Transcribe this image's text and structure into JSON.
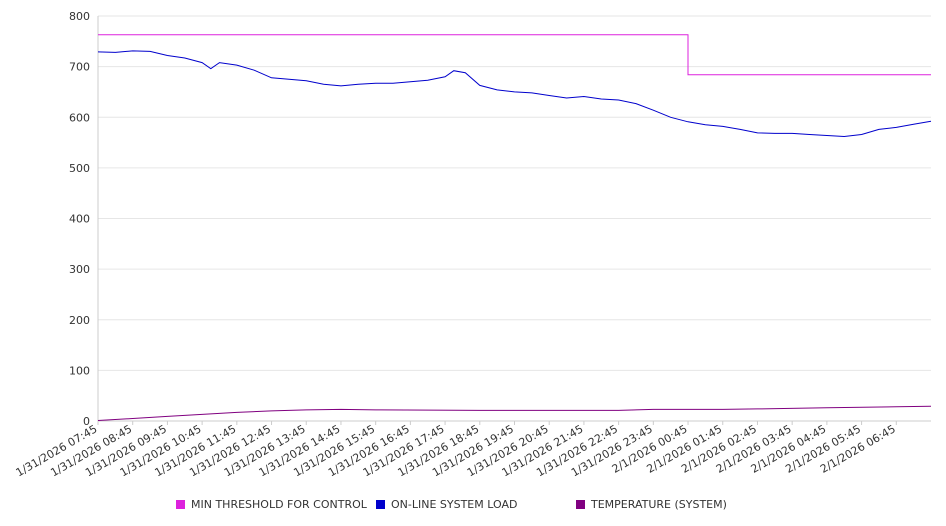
{
  "chart_data": {
    "type": "line",
    "ylim": [
      0,
      800
    ],
    "y_ticks": [
      "0",
      "100",
      "200",
      "300",
      "400",
      "500",
      "600",
      "700",
      "800"
    ],
    "x_tick_labels": [
      "1/31/2026 07:45",
      "1/31/2026 08:45",
      "1/31/2026 09:45",
      "1/31/2026 10:45",
      "1/31/2026 11:45",
      "1/31/2026 12:45",
      "1/31/2026 13:45",
      "1/31/2026 14:45",
      "1/31/2026 15:45",
      "1/31/2026 16:45",
      "1/31/2026 17:45",
      "1/31/2026 18:45",
      "1/31/2026 19:45",
      "1/31/2026 20:45",
      "1/31/2026 21:45",
      "1/31/2026 22:45",
      "1/31/2026 23:45",
      "2/1/2026 00:45",
      "2/1/2026 01:45",
      "2/1/2026 02:45",
      "2/1/2026 03:45",
      "2/1/2026 04:45",
      "2/1/2026 05:45",
      "2/1/2026 06:45"
    ],
    "grid": true,
    "legend_position": "bottom",
    "series": [
      {
        "name": "MIN THRESHOLD FOR CONTROL",
        "color": "#dd22dd",
        "points": [
          [
            "1/31/2026 07:45",
            763
          ],
          [
            "2/1/2026 00:45",
            763
          ],
          [
            "2/1/2026 00:45",
            684
          ],
          [
            "2/1/2026 07:45",
            684
          ]
        ]
      },
      {
        "name": "ON-LINE SYSTEM LOAD",
        "color": "#0000cc",
        "points": [
          [
            "1/31/2026 07:45",
            729
          ],
          [
            "1/31/2026 08:15",
            728
          ],
          [
            "1/31/2026 08:45",
            731
          ],
          [
            "1/31/2026 09:15",
            730
          ],
          [
            "1/31/2026 09:45",
            722
          ],
          [
            "1/31/2026 10:15",
            717
          ],
          [
            "1/31/2026 10:45",
            708
          ],
          [
            "1/31/2026 11:00",
            696
          ],
          [
            "1/31/2026 11:15",
            708
          ],
          [
            "1/31/2026 11:45",
            703
          ],
          [
            "1/31/2026 12:15",
            693
          ],
          [
            "1/31/2026 12:45",
            678
          ],
          [
            "1/31/2026 13:15",
            675
          ],
          [
            "1/31/2026 13:45",
            672
          ],
          [
            "1/31/2026 14:15",
            665
          ],
          [
            "1/31/2026 14:45",
            662
          ],
          [
            "1/31/2026 15:15",
            665
          ],
          [
            "1/31/2026 15:45",
            667
          ],
          [
            "1/31/2026 16:15",
            667
          ],
          [
            "1/31/2026 16:45",
            670
          ],
          [
            "1/31/2026 17:15",
            673
          ],
          [
            "1/31/2026 17:45",
            680
          ],
          [
            "1/31/2026 18:00",
            692
          ],
          [
            "1/31/2026 18:20",
            688
          ],
          [
            "1/31/2026 18:45",
            663
          ],
          [
            "1/31/2026 19:15",
            654
          ],
          [
            "1/31/2026 19:45",
            650
          ],
          [
            "1/31/2026 20:15",
            648
          ],
          [
            "1/31/2026 20:45",
            643
          ],
          [
            "1/31/2026 21:15",
            638
          ],
          [
            "1/31/2026 21:45",
            641
          ],
          [
            "1/31/2026 22:15",
            636
          ],
          [
            "1/31/2026 22:45",
            634
          ],
          [
            "1/31/2026 23:15",
            627
          ],
          [
            "1/31/2026 23:45",
            614
          ],
          [
            "2/1/2026 00:15",
            600
          ],
          [
            "2/1/2026 00:45",
            591
          ],
          [
            "2/1/2026 01:15",
            585
          ],
          [
            "2/1/2026 01:45",
            582
          ],
          [
            "2/1/2026 02:15",
            576
          ],
          [
            "2/1/2026 02:45",
            569
          ],
          [
            "2/1/2026 03:15",
            568
          ],
          [
            "2/1/2026 03:45",
            568
          ],
          [
            "2/1/2026 04:15",
            566
          ],
          [
            "2/1/2026 04:45",
            564
          ],
          [
            "2/1/2026 05:15",
            562
          ],
          [
            "2/1/2026 05:45",
            566
          ],
          [
            "2/1/2026 06:15",
            576
          ],
          [
            "2/1/2026 06:45",
            580
          ],
          [
            "2/1/2026 07:15",
            586
          ],
          [
            "2/1/2026 07:45",
            592
          ]
        ]
      },
      {
        "name": "TEMPERATURE (SYSTEM)",
        "color": "#800080",
        "points": [
          [
            "1/31/2026 07:45",
            1
          ],
          [
            "1/31/2026 08:45",
            5
          ],
          [
            "1/31/2026 09:45",
            9
          ],
          [
            "1/31/2026 10:45",
            13
          ],
          [
            "1/31/2026 11:45",
            17
          ],
          [
            "1/31/2026 12:45",
            20
          ],
          [
            "1/31/2026 13:45",
            22
          ],
          [
            "1/31/2026 14:45",
            23
          ],
          [
            "1/31/2026 15:45",
            22
          ],
          [
            "1/31/2026 18:45",
            21
          ],
          [
            "1/31/2026 22:45",
            21
          ],
          [
            "1/31/2026 23:45",
            23
          ],
          [
            "2/1/2026 01:45",
            23
          ],
          [
            "2/1/2026 02:45",
            24
          ],
          [
            "2/1/2026 04:45",
            26
          ],
          [
            "2/1/2026 06:45",
            28
          ],
          [
            "2/1/2026 07:45",
            29
          ]
        ]
      }
    ]
  },
  "legend": {
    "items": [
      {
        "label": "MIN THRESHOLD FOR CONTROL",
        "color": "#dd22dd"
      },
      {
        "label": "ON-LINE SYSTEM LOAD",
        "color": "#0000cc"
      },
      {
        "label": "TEMPERATURE (SYSTEM)",
        "color": "#800080"
      }
    ]
  }
}
